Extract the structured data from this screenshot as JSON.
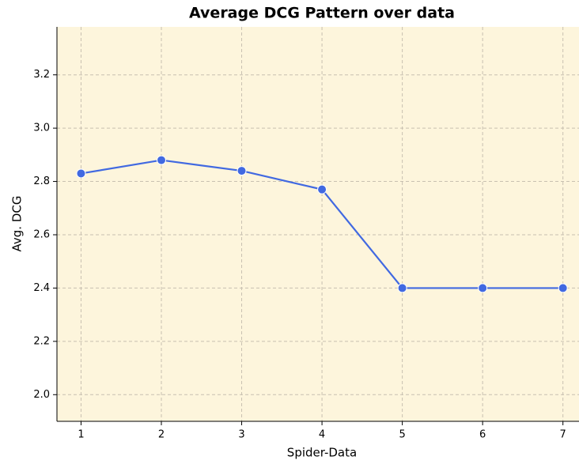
{
  "chart_data": {
    "type": "line",
    "title": "Average DCG Pattern over data",
    "x_label": "Spider-Data",
    "y_label": "Avg. DCG",
    "x": [
      1,
      2,
      3,
      4,
      5,
      6,
      7
    ],
    "series": [
      {
        "name": "Avg. DCG",
        "color": "#4169e1",
        "values": [
          2.83,
          2.88,
          2.84,
          2.77,
          2.4,
          2.4,
          2.4
        ]
      }
    ],
    "xlim": [
      0.7,
      7.2
    ],
    "xticks": [
      1,
      2,
      3,
      4,
      5,
      6,
      7
    ],
    "ylim": [
      1.9,
      3.38
    ],
    "yticks": [
      {
        "value": 2.0,
        "label": "2.0"
      },
      {
        "value": 2.2,
        "label": "2.2"
      },
      {
        "value": 2.4,
        "label": "2.4"
      },
      {
        "value": 2.6,
        "label": "2.6"
      },
      {
        "value": 2.8,
        "label": "2.8"
      },
      {
        "value": 3.0,
        "label": "3.0"
      },
      {
        "value": 3.2,
        "label": "3.2"
      }
    ],
    "grid": true,
    "background": "#fdf5dc"
  }
}
